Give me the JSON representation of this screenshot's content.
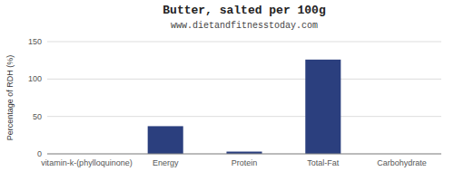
{
  "chart_data": {
    "type": "bar",
    "title": "Butter, salted per 100g",
    "subtitle": "www.dietandfitnesstoday.com",
    "categories": [
      "vitamin-k-(phylloquinone)",
      "Energy",
      "Protein",
      "Total-Fat",
      "Carbohydrate"
    ],
    "values": [
      0,
      37,
      3,
      126,
      0
    ],
    "color": "#2b3f7e",
    "ylabel": "Percentage of RDH (%)",
    "ylim": [
      0,
      150
    ],
    "yticks": [
      0,
      50,
      100,
      150
    ],
    "grid": true
  }
}
